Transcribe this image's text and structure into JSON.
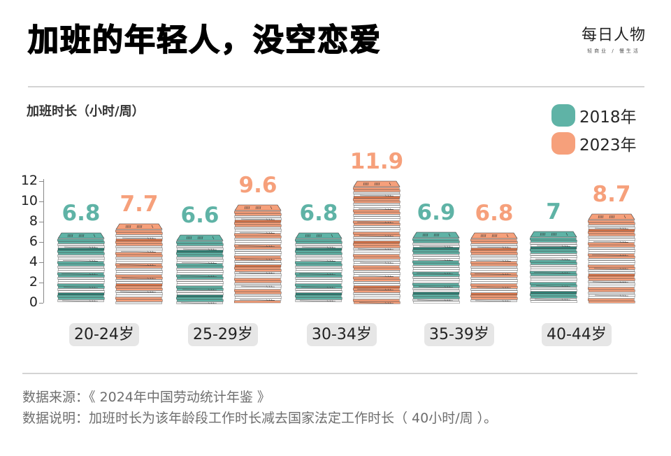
{
  "header": {
    "title": "加班的年轻人，没空恋爱",
    "brand_name": "每日人物",
    "brand_sub": "轻商业 / 慢生活"
  },
  "colors": {
    "series_2018": "#5fb3a6",
    "series_2023": "#f6a07b",
    "series_2018_dark": "#2f7f74",
    "series_2023_dark": "#d9754a",
    "label_bg": "#e6e6e6"
  },
  "chart_data": {
    "type": "bar",
    "title": "加班的年轻人，没空恋爱",
    "ylabel": "加班时长（小时/周）",
    "xlabel": "",
    "categories": [
      "20-24岁",
      "25-29岁",
      "30-34岁",
      "35-39岁",
      "40-44岁"
    ],
    "series": [
      {
        "name": "2018年",
        "values": [
          6.8,
          6.6,
          6.8,
          6.9,
          7
        ]
      },
      {
        "name": "2023年",
        "values": [
          7.7,
          9.6,
          11.9,
          6.8,
          8.7
        ]
      }
    ],
    "value_labels": {
      "2018年": [
        "6.8",
        "6.6",
        "6.8",
        "6.9",
        "7"
      ],
      "2023年": [
        "7.7",
        "9.6",
        "11.9",
        "6.8",
        "8.7"
      ]
    },
    "ylim": [
      0,
      12
    ],
    "yticks": [
      "0",
      "2",
      "4",
      "6",
      "8",
      "10",
      "12"
    ],
    "grid": false,
    "legend_position": "top-right",
    "style": "pictorial stacked paper piles"
  },
  "legend": [
    {
      "label": "2018年"
    },
    {
      "label": "2023年"
    }
  ],
  "notes": {
    "source": "数据来源：《 2024年中国劳动统计年鉴 》",
    "explanation": "数据说明：加班时长为该年龄段工作时长减去国家法定工作时长（ 40小时/周 ）。"
  }
}
